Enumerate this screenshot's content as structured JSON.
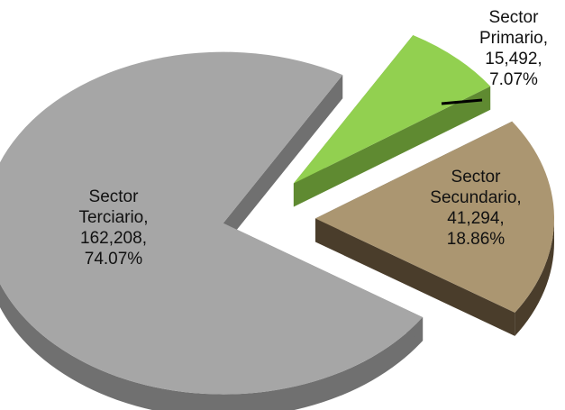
{
  "chart_data": {
    "type": "pie",
    "title": "",
    "slices": [
      {
        "line1": "Sector",
        "line2": "Primario,",
        "value_label": "15,492,",
        "percent_label": "7.07%",
        "value": 15492,
        "percent": 7.07,
        "color": "#92d050",
        "side_color": "#5f8a31"
      },
      {
        "line1": "Sector",
        "line2": "Secundario,",
        "value_label": "41,294,",
        "percent_label": "18.86%",
        "value": 41294,
        "percent": 18.86,
        "color": "#ab9671",
        "side_color": "#4a3d2b"
      },
      {
        "line1": "Sector",
        "line2": "Terciario,",
        "value_label": "162,208,",
        "percent_label": "74.07%",
        "value": 162208,
        "percent": 74.07,
        "color": "#a6a6a6",
        "side_color": "#707070"
      }
    ],
    "exploded": true,
    "legend": "none"
  }
}
